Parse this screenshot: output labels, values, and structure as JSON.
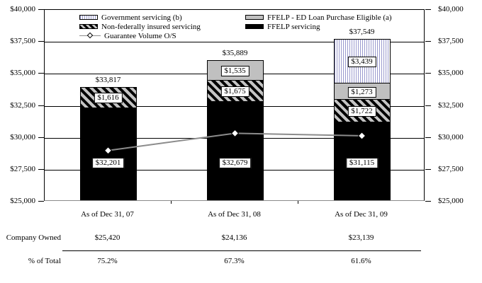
{
  "chart_data": {
    "type": "bar",
    "subtype": "stacked-bar-with-line-overlay",
    "categories": [
      "As of Dec 31, 07",
      "As of Dec 31, 08",
      "As of Dec 31, 09"
    ],
    "series": [
      {
        "name": "FFELP servicing",
        "style": "solid-black",
        "values": [
          32201,
          32679,
          31115
        ]
      },
      {
        "name": "Non-federally insured servicing",
        "style": "diagonal-hatch",
        "values": [
          1616,
          1675,
          1722
        ]
      },
      {
        "name": "FFELP - ED Loan Purchase Eligible (a)",
        "style": "solid-gray",
        "values": [
          0,
          1535,
          1273
        ]
      },
      {
        "name": "Government servicing (b)",
        "style": "vertical-hatch",
        "values": [
          0,
          0,
          3439
        ]
      }
    ],
    "bar_totals": [
      33817,
      35889,
      37549
    ],
    "line_series": {
      "name": "Guarantee Volume O/S",
      "values": [
        29000,
        30350,
        30150
      ]
    },
    "y_axis": {
      "min": 25000,
      "max": 40000,
      "step": 2500,
      "tick_labels": [
        "$40,000",
        "$37,500",
        "$35,000",
        "$32,500",
        "$30,000",
        "$27,500",
        "$25,000"
      ],
      "dual_axis": true,
      "grid": true
    },
    "legend": {
      "position": "top-inside",
      "columns": [
        [
          {
            "swatch": "vertical-hatch",
            "label": "Government servicing (b)"
          },
          {
            "swatch": "diagonal-hatch",
            "label": "Non-federally insured servicing"
          },
          {
            "swatch": "line-marker",
            "label": "Guarantee Volume O/S"
          }
        ],
        [
          {
            "swatch": "solid-gray",
            "label": "FFELP - ED Loan Purchase Eligible (a)"
          },
          {
            "swatch": "solid-black",
            "label": "FFELP servicing"
          }
        ]
      ]
    }
  },
  "table": {
    "rows": [
      {
        "label": "Company Owned",
        "values": [
          "$25,420",
          "$24,136",
          "$23,139"
        ]
      },
      {
        "label": "% of Total",
        "values": [
          "75.2%",
          "67.3%",
          "61.6%"
        ]
      }
    ]
  },
  "colors": {
    "gray_fill": "#c0c0c0",
    "line": "#8c8c8c",
    "vertical_hatch_line": "#9a9ace",
    "black_fill": "#000000"
  }
}
